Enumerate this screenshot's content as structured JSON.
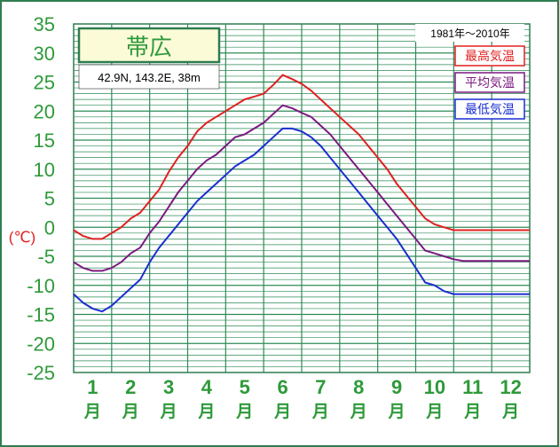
{
  "chart_data": {
    "type": "line",
    "title": "帯広",
    "location": "42.9N, 143.2E, 38m",
    "period": "1981年〜2010年",
    "ylabel": "(℃)",
    "ylim": [
      -25,
      35
    ],
    "yticks": [
      35,
      30,
      25,
      20,
      15,
      10,
      5,
      0,
      -5,
      -10,
      -15,
      -20,
      -25
    ],
    "xlim": [
      0.5,
      12.5
    ],
    "months": [
      "1",
      "2",
      "3",
      "4",
      "5",
      "6",
      "7",
      "8",
      "9",
      "10",
      "11",
      "12"
    ],
    "month_unit": "月",
    "grid": true,
    "legend_position": "top-right",
    "x": [
      0.5,
      0.75,
      1.0,
      1.25,
      1.5,
      1.75,
      2.0,
      2.25,
      2.5,
      2.75,
      3.0,
      3.25,
      3.5,
      3.75,
      4.0,
      4.25,
      4.5,
      4.75,
      5.0,
      5.25,
      5.5,
      5.75,
      6.0,
      6.25,
      6.5,
      6.75,
      7.0,
      7.25,
      7.5,
      7.75,
      8.0,
      8.25,
      8.5,
      8.75,
      9.0,
      9.25,
      9.5,
      9.75,
      10.0,
      10.25,
      10.5,
      10.75,
      11.0,
      11.25,
      11.5,
      11.75,
      12.0,
      12.25,
      12.5
    ],
    "series": [
      {
        "name": "最高気温",
        "color": "#e02020",
        "values": [
          -0.5,
          -1.5,
          -2.0,
          -2.0,
          -1.0,
          0.0,
          1.5,
          2.5,
          4.5,
          6.5,
          9.5,
          12.0,
          14.0,
          16.5,
          18.0,
          19.0,
          20.0,
          21.0,
          22.0,
          22.5,
          23.0,
          24.5,
          26.2,
          25.5,
          24.7,
          23.5,
          22.0,
          20.5,
          19.0,
          17.5,
          16.0,
          14.0,
          12.0,
          10.0,
          7.5,
          5.5,
          3.5,
          1.5,
          0.5,
          0.0,
          -0.5,
          -0.5,
          -0.5,
          -0.5,
          -0.5,
          -0.5,
          -0.5,
          -0.5,
          -0.5
        ]
      },
      {
        "name": "平均気温",
        "color": "#7b1a80",
        "values": [
          -6.0,
          -7.0,
          -7.5,
          -7.5,
          -7.0,
          -6.0,
          -4.5,
          -3.5,
          -1.0,
          1.0,
          3.5,
          6.0,
          8.0,
          10.0,
          11.5,
          12.5,
          14.0,
          15.5,
          16.0,
          17.0,
          18.0,
          19.5,
          21.0,
          20.5,
          19.7,
          19.0,
          17.5,
          16.0,
          14.0,
          12.0,
          10.0,
          8.0,
          6.0,
          4.0,
          2.0,
          0.0,
          -2.0,
          -4.0,
          -4.5,
          -5.0,
          -5.5,
          -5.8,
          -5.8,
          -5.8,
          -5.8,
          -5.8,
          -5.8,
          -5.8,
          -5.8
        ]
      },
      {
        "name": "最低気温",
        "color": "#1a2fd0",
        "values": [
          -11.5,
          -13.0,
          -14.0,
          -14.5,
          -13.5,
          -12.0,
          -10.5,
          -9.0,
          -6.0,
          -3.5,
          -1.5,
          0.5,
          2.5,
          4.5,
          6.0,
          7.5,
          9.0,
          10.5,
          11.5,
          12.5,
          14.0,
          15.5,
          17.0,
          17.0,
          16.5,
          15.5,
          14.0,
          12.0,
          10.0,
          8.0,
          6.0,
          4.0,
          2.0,
          0.0,
          -2.0,
          -4.5,
          -7.0,
          -9.5,
          -10.0,
          -11.0,
          -11.5,
          -11.5,
          -11.5,
          -11.5,
          -11.5,
          -11.5,
          -11.5,
          -11.5,
          -11.5
        ]
      }
    ]
  }
}
